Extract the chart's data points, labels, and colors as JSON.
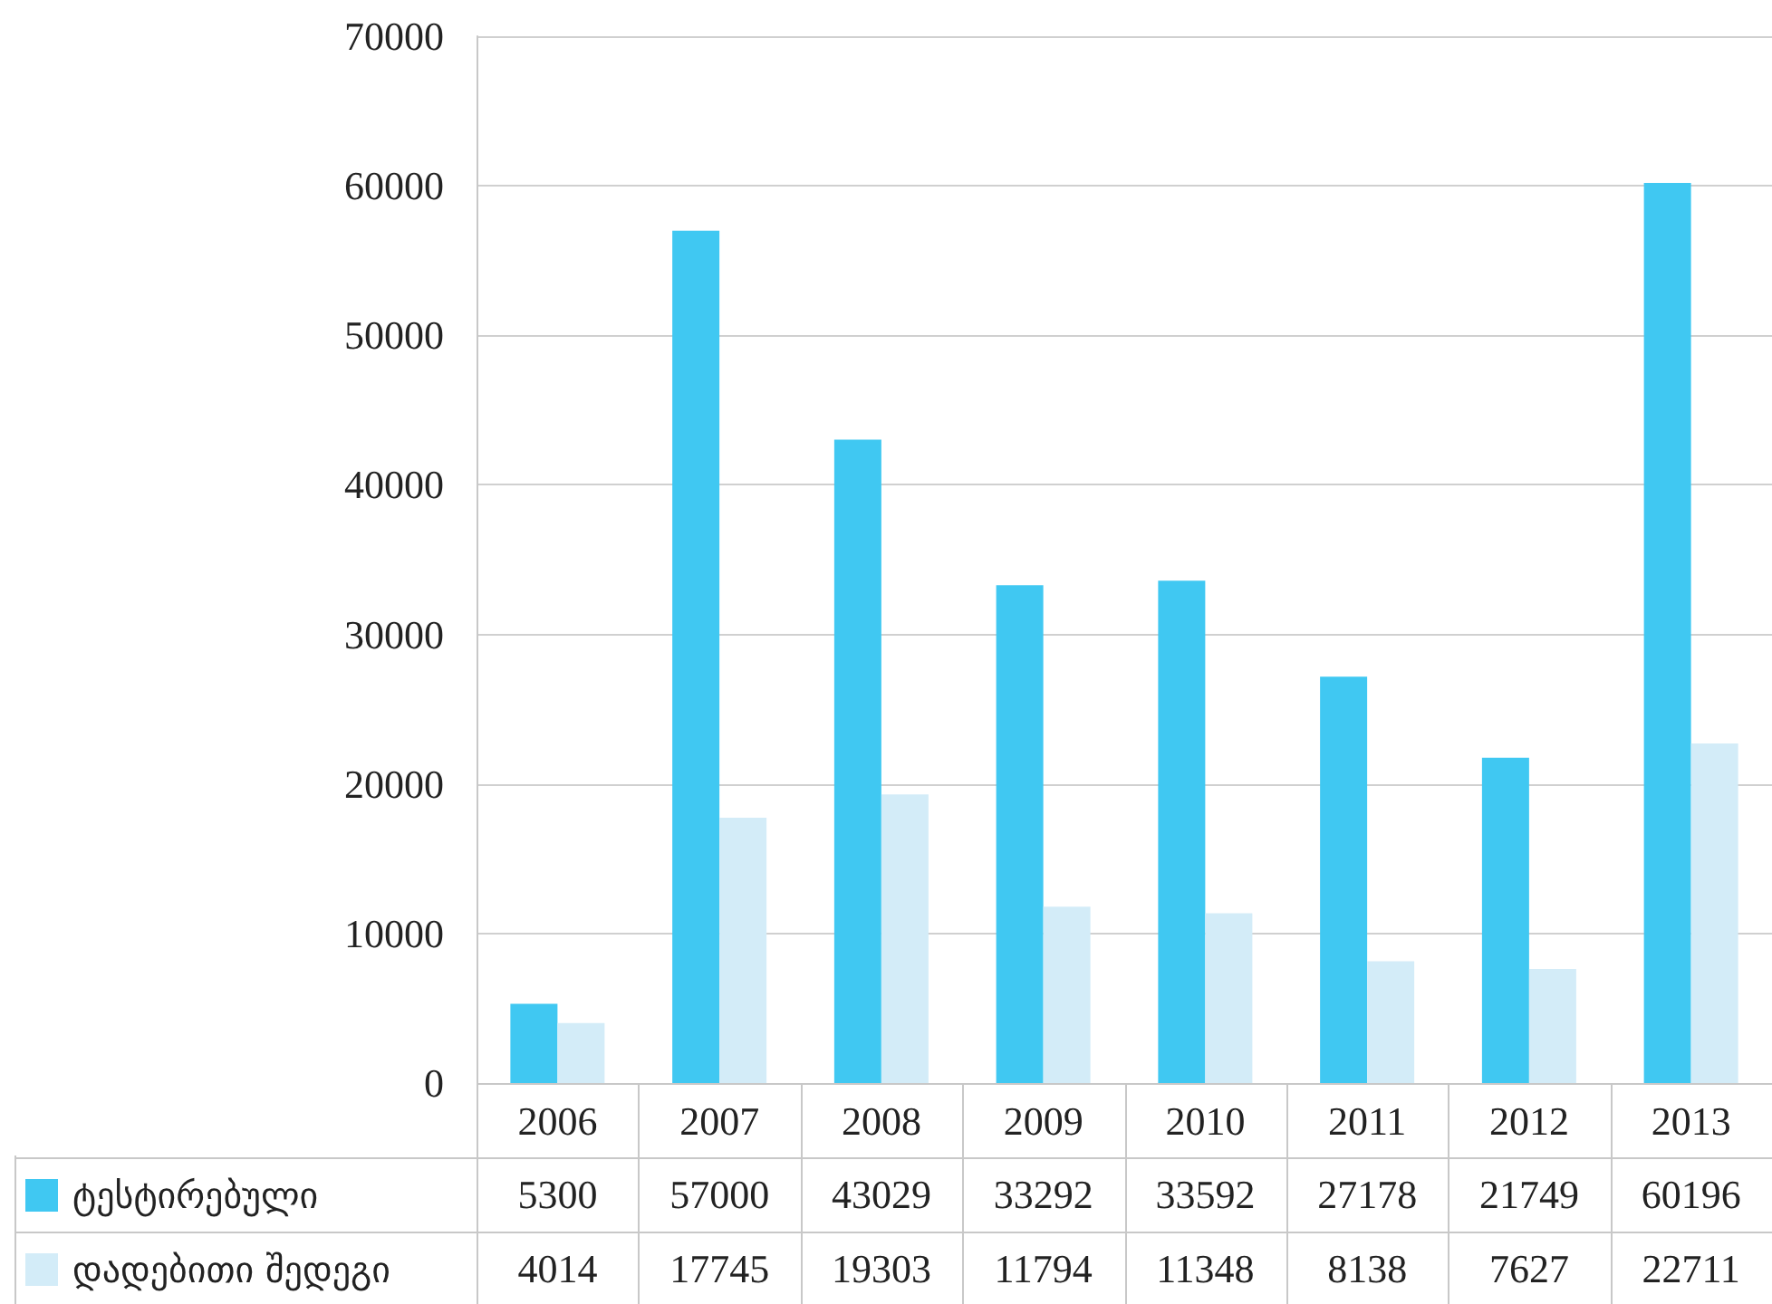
{
  "chart_data": {
    "type": "bar",
    "categories": [
      "2006",
      "2007",
      "2008",
      "2009",
      "2010",
      "2011",
      "2012",
      "2013"
    ],
    "series": [
      {
        "name": "ტესტირებული",
        "color": "#40c8f2",
        "values": [
          5300,
          57000,
          43029,
          33292,
          33592,
          27178,
          21749,
          60196
        ]
      },
      {
        "name": "დადებითი შედეგი",
        "color": "#d3ecf8",
        "values": [
          4014,
          17745,
          19303,
          11794,
          11348,
          8138,
          7627,
          22711
        ]
      }
    ],
    "ylim": [
      0,
      70000
    ],
    "yticks": [
      0,
      10000,
      20000,
      30000,
      40000,
      50000,
      60000,
      70000
    ],
    "grid": "y",
    "data_labels": true,
    "legend": "bottom left"
  }
}
